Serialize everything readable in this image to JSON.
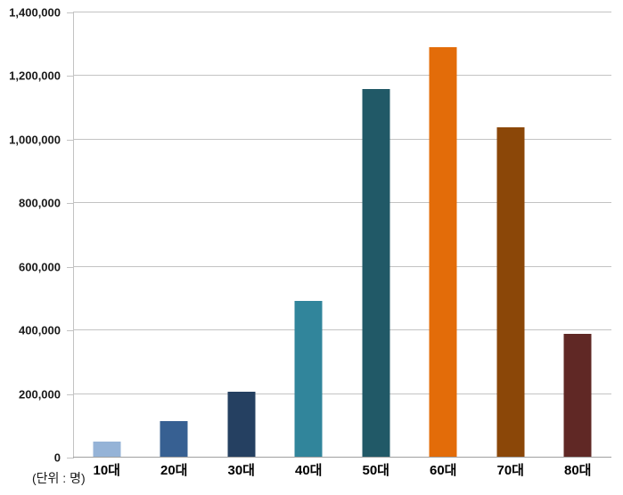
{
  "chart_data": {
    "type": "bar",
    "title": "",
    "categories": [
      "10대",
      "20대",
      "30대",
      "40대",
      "50대",
      "60대",
      "70대",
      "80대"
    ],
    "values": [
      50000,
      115000,
      206000,
      492000,
      1160000,
      1290000,
      1040000,
      390000
    ],
    "bar_colors": [
      "#95B3D7",
      "#376092",
      "#254061",
      "#31859B",
      "#215967",
      "#E36C09",
      "#8B4708",
      "#602825"
    ],
    "xlabel": "",
    "ylabel": "",
    "unit_label": "(단위 : 명)",
    "ylim": [
      0,
      1400000
    ],
    "ytick_interval": 200000,
    "ytick_labels": [
      "0",
      "200,000",
      "400,000",
      "600,000",
      "800,000",
      "1,000,000",
      "1,200,000",
      "1,400,000"
    ],
    "grid": true,
    "legend": false
  },
  "colors": {
    "gridline": "#C3C3C3",
    "axis_line": "#A0A0A0",
    "background": "#FFFFFF",
    "label_text": "#1A1A1A"
  }
}
